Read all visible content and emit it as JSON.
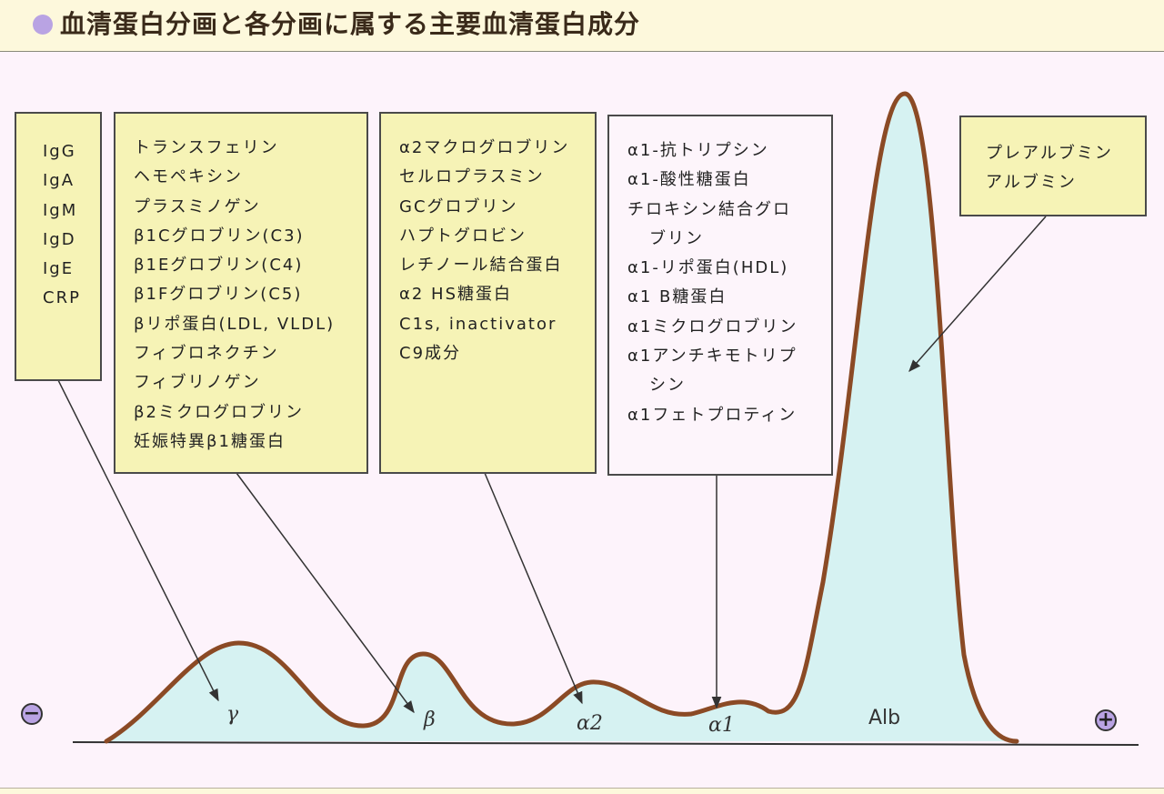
{
  "title": "血清蛋白分画と各分画に属する主要血清蛋白成分",
  "boxes": {
    "gamma": [
      "IgG",
      "IgA",
      "IgM",
      "IgD",
      "IgE",
      "CRP"
    ],
    "beta": [
      "トランスフェリン",
      "ヘモペキシン",
      "プラスミノゲン",
      "β1Cグロブリン(C3)",
      "β1Eグロブリン(C4)",
      "β1Fグロブリン(C5)",
      "βリポ蛋白(LDL, VLDL)",
      "フィブロネクチン",
      "フィブリノゲン",
      "β2ミクログロブリン",
      "妊娠特異β1糖蛋白"
    ],
    "alpha2": [
      "α2マクログロブリン",
      "セルロプラスミン",
      "GCグロブリン",
      "ハプトグロビン",
      "レチノール結合蛋白",
      "α2 HS糖蛋白",
      "C1s, inactivator",
      "C9成分"
    ],
    "alpha1": [
      "α1-抗トリプシン",
      "α1-酸性糖蛋白",
      "チロキシン結合グロ",
      "ブリン",
      "α1-リポ蛋白(HDL)",
      "α1 B糖蛋白",
      "α1ミクログロブリン",
      "α1アンチキモトリプ",
      "シン",
      "α1フェトプロティン"
    ],
    "albumin": [
      "プレアルブミン",
      "アルブミン"
    ]
  },
  "peaks": {
    "gamma": "γ",
    "beta": "β",
    "alpha2": "α2",
    "alpha1": "α1",
    "albumin": "Alb"
  },
  "poles": {
    "negative": "−",
    "positive": "+"
  },
  "colors": {
    "curve": "#8b4a25",
    "fill": "#d6f2f2",
    "box": "#f6f3b6",
    "pole": "#b9a3e3"
  }
}
